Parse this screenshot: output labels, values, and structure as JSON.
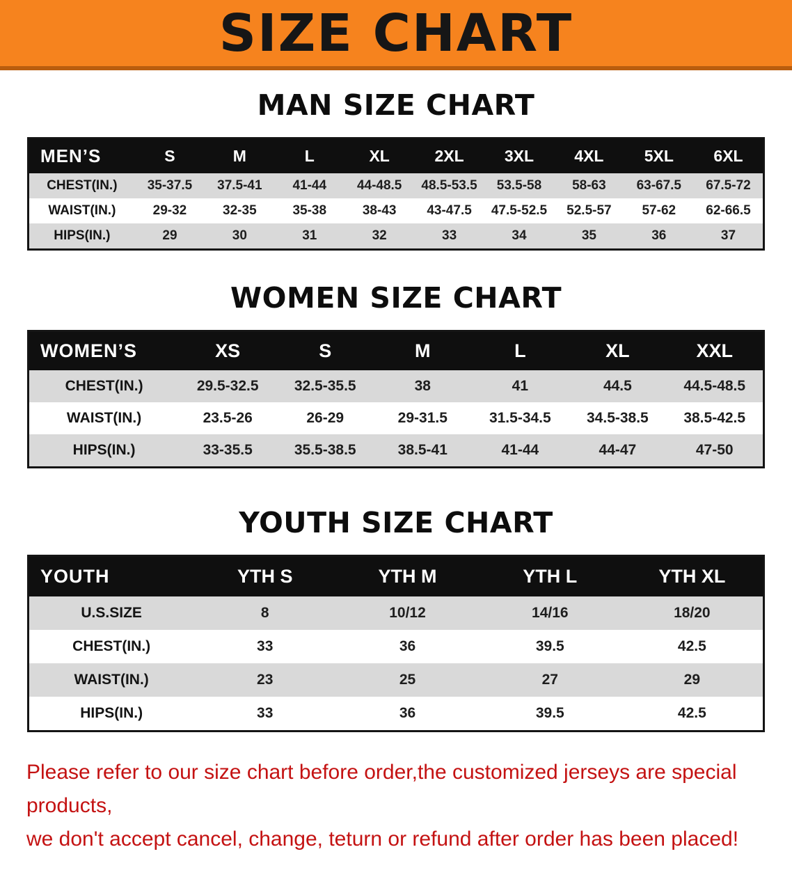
{
  "banner": {
    "title": "SIZE CHART"
  },
  "colors": {
    "banner_bg": "#f6831e",
    "banner_edge": "#b95d0e",
    "table_header_bg": "#0f0f0f",
    "row_alt_gray": "#d9d9d9",
    "note_red": "#c41212"
  },
  "men": {
    "heading": "MAN SIZE CHART",
    "header": [
      "MEN’S",
      "S",
      "M",
      "L",
      "XL",
      "2XL",
      "3XL",
      "4XL",
      "5XL",
      "6XL"
    ],
    "rows": [
      [
        "CHEST(IN.)",
        "35-37.5",
        "37.5-41",
        "41-44",
        "44-48.5",
        "48.5-53.5",
        "53.5-58",
        "58-63",
        "63-67.5",
        "67.5-72"
      ],
      [
        "WAIST(IN.)",
        "29-32",
        "32-35",
        "35-38",
        "38-43",
        "43-47.5",
        "47.5-52.5",
        "52.5-57",
        "57-62",
        "62-66.5"
      ],
      [
        "HIPS(IN.)",
        "29",
        "30",
        "31",
        "32",
        "33",
        "34",
        "35",
        "36",
        "37"
      ]
    ]
  },
  "women": {
    "heading": "WOMEN SIZE CHART",
    "header": [
      "WOMEN’S",
      "XS",
      "S",
      "M",
      "L",
      "XL",
      "XXL"
    ],
    "rows": [
      [
        "CHEST(IN.)",
        "29.5-32.5",
        "32.5-35.5",
        "38",
        "41",
        "44.5",
        "44.5-48.5"
      ],
      [
        "WAIST(IN.)",
        "23.5-26",
        "26-29",
        "29-31.5",
        "31.5-34.5",
        "34.5-38.5",
        "38.5-42.5"
      ],
      [
        "HIPS(IN.)",
        "33-35.5",
        "35.5-38.5",
        "38.5-41",
        "41-44",
        "44-47",
        "47-50"
      ]
    ]
  },
  "youth": {
    "heading": "YOUTH SIZE CHART",
    "header": [
      "YOUTH",
      "YTH S",
      "YTH M",
      "YTH L",
      "YTH XL"
    ],
    "rows": [
      [
        "U.S.SIZE",
        "8",
        "10/12",
        "14/16",
        "18/20"
      ],
      [
        "CHEST(IN.)",
        "33",
        "36",
        "39.5",
        "42.5"
      ],
      [
        "WAIST(IN.)",
        "23",
        "25",
        "27",
        "29"
      ],
      [
        "HIPS(IN.)",
        "33",
        "36",
        "39.5",
        "42.5"
      ]
    ]
  },
  "note": {
    "line1": "Please refer to our size chart before order,the customized jerseys are special products,",
    "line2": "we don't accept cancel, change, teturn or refund after order has been placed!"
  }
}
